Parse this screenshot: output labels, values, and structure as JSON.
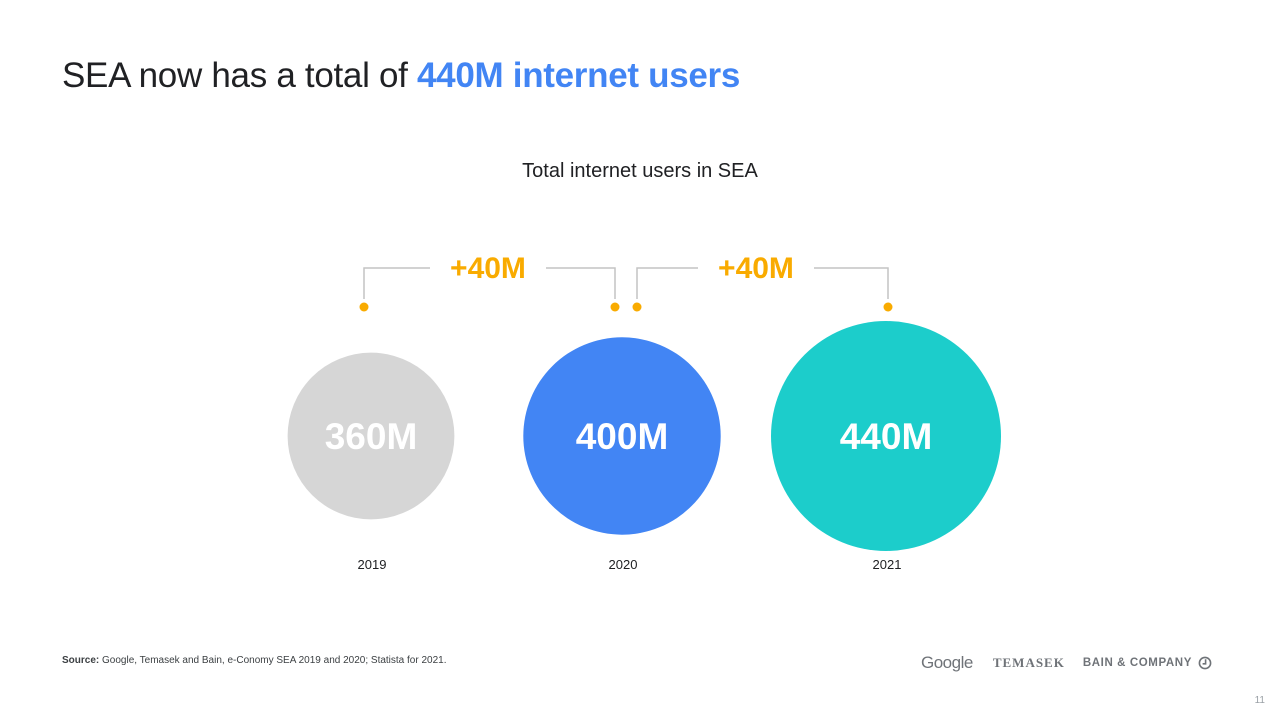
{
  "headline": {
    "prefix": "SEA now has a total of ",
    "highlight": "440M internet users"
  },
  "chart_data": {
    "type": "bubble",
    "title": "Total internet users in SEA",
    "unit": "M",
    "categories": [
      "2019",
      "2020",
      "2021"
    ],
    "values": [
      360,
      400,
      440
    ],
    "value_labels": [
      "360M",
      "400M",
      "440M"
    ],
    "colors": [
      "#d6d6d6",
      "#4285f4",
      "#1ccdcb"
    ],
    "increments": [
      {
        "from": "2019",
        "to": "2020",
        "label": "+40M"
      },
      {
        "from": "2020",
        "to": "2021",
        "label": "+40M"
      }
    ],
    "increment_color": "#f9ab00",
    "connector_color": "#c4c4c4"
  },
  "footer": {
    "source_label": "Source:",
    "source_text": " Google, Temasek and Bain, e-Conomy SEA 2019 and 2020; Statista for 2021.",
    "logos": [
      "Google",
      "TEMASEK",
      "BAIN & COMPANY"
    ],
    "page_number": "11"
  }
}
